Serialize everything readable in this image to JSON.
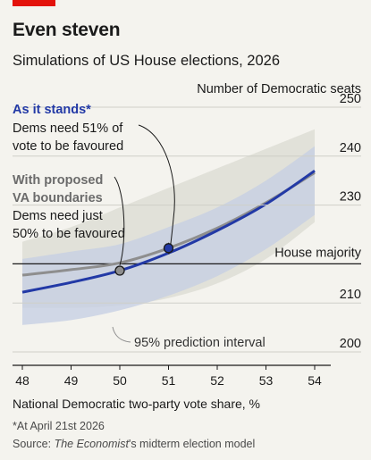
{
  "header": {
    "title": "Even steven",
    "subtitle": "Simulations of US House elections, 2026"
  },
  "footer": {
    "footnote": "*At April 21st 2026",
    "source_prefix": "Source: ",
    "source_italic": "The Economist",
    "source_suffix": "'s midterm election model"
  },
  "colors": {
    "accent": "#e3120b",
    "current_line": "#8e8e8e",
    "current_band": "#dcdcd3",
    "proposed_line": "#2239a6",
    "proposed_band": "#c4cde3",
    "background": "#f4f3ee"
  },
  "chart_data": {
    "type": "line",
    "xlabel": "National Democratic two-party vote share, %",
    "ylabel": "Number of Democratic seats",
    "xlim": [
      48,
      54
    ],
    "ylim": [
      200,
      250
    ],
    "x_ticks": [
      48,
      49,
      50,
      51,
      52,
      53,
      54
    ],
    "y_ticks": [
      200,
      210,
      230,
      240,
      250
    ],
    "majority_line": {
      "value": 218,
      "label": "House majority"
    },
    "band_label": "95% prediction interval",
    "series": [
      {
        "key": "as_it_stands",
        "label": "As it stands*",
        "note": [
          "Dems need 51% of",
          "vote to be favoured"
        ],
        "x": [
          48,
          49,
          50,
          51,
          52,
          53,
          54
        ],
        "y": [
          215.7,
          216.8,
          218.2,
          221.2,
          225.3,
          230.5,
          236.6
        ],
        "upper": [
          222.5,
          225.5,
          229.5,
          233.5,
          237.5,
          241.5,
          245.5
        ],
        "lower": [
          209,
          209,
          209.5,
          211,
          214,
          219,
          226.5
        ],
        "marker_x": 51
      },
      {
        "key": "proposed_va",
        "label": [
          "With proposed",
          "VA boundaries"
        ],
        "note": [
          "Dems need just",
          "50% to be favoured"
        ],
        "x": [
          48,
          49,
          50,
          51,
          52,
          53,
          54
        ],
        "y": [
          212.2,
          214.2,
          216.6,
          220.2,
          224.8,
          230.2,
          237
        ],
        "upper": [
          219,
          220.5,
          222,
          225.5,
          229.5,
          235,
          242
        ],
        "lower": [
          205.5,
          206.5,
          208.5,
          211.5,
          215.5,
          221,
          228
        ],
        "marker_x": 50
      }
    ]
  }
}
